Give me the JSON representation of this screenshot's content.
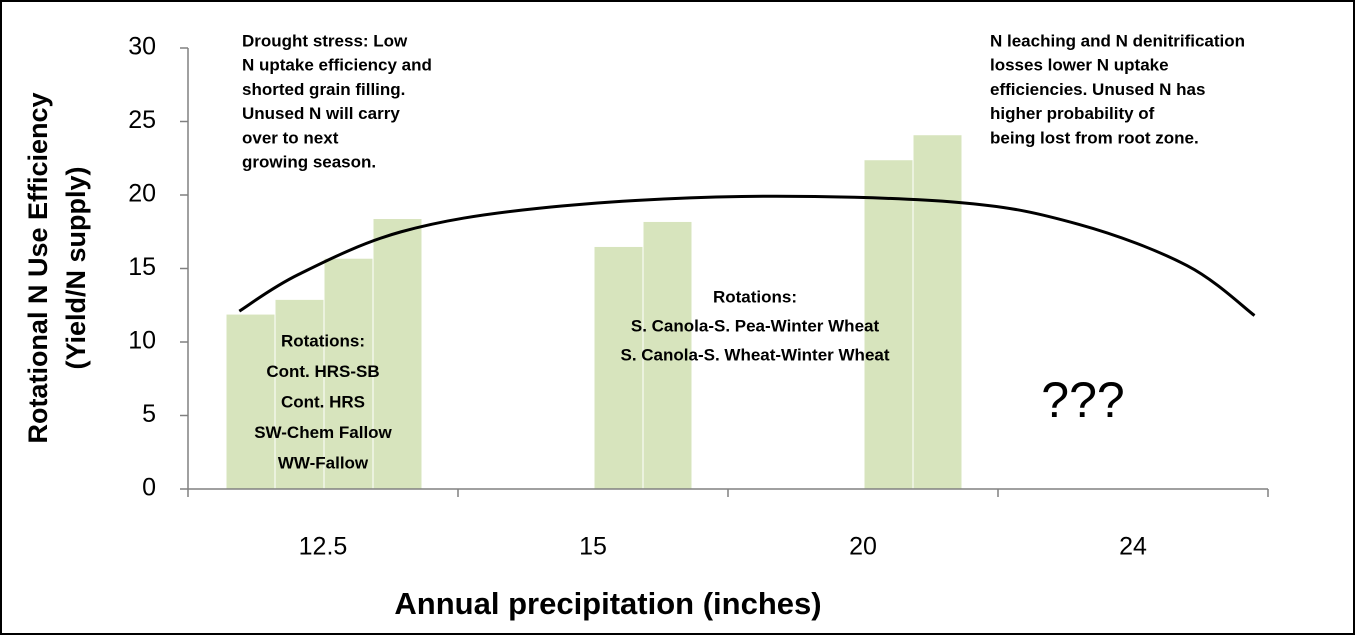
{
  "chart_data": {
    "type": "bar",
    "y_label": [
      "Rotational N Use Efficiency",
      "(Yield/N supply)"
    ],
    "x_label": "Annual precipitation (inches)",
    "categories": [
      "12.5",
      "15",
      "20",
      "24"
    ],
    "series": [
      {
        "color": "#d7e4bd",
        "values": [
          11.9,
          null,
          null,
          null
        ]
      },
      {
        "color": "#d7e4bd",
        "values": [
          12.9,
          null,
          null,
          null
        ]
      },
      {
        "color": "#d7e4bd",
        "values": [
          15.7,
          16.5,
          22.4,
          null
        ]
      },
      {
        "color": "#d7e4bd",
        "values": [
          18.4,
          18.2,
          24.1,
          null
        ]
      }
    ],
    "ylim": [
      0,
      30
    ],
    "yticks": [
      0,
      5,
      10,
      15,
      20,
      25,
      30
    ],
    "trend": {
      "color": "#000000",
      "x": [
        0.19,
        0.41,
        0.79,
        1.3,
        2.05,
        2.85,
        3.3,
        3.7,
        3.95
      ],
      "values": [
        12.1,
        14.6,
        17.5,
        19.1,
        19.9,
        19.5,
        18.0,
        15.2,
        11.8
      ]
    },
    "annotations": [
      {
        "lines": [
          "Drought stress: Low",
          "N uptake efficiency and",
          "shorted grain filling.",
          "Unused N will carry",
          "over to next",
          "growing season."
        ]
      },
      {
        "lines": [
          "N leaching and N denitrification",
          "losses lower N uptake",
          "efficiencies. Unused N has",
          "higher probability of",
          "being lost from root zone."
        ]
      },
      {
        "lines": [
          "Rotations:",
          "Cont. HRS-SB",
          "Cont. HRS",
          "SW-Chem Fallow",
          "WW-Fallow"
        ]
      },
      {
        "lines": [
          "Rotations:",
          "S. Canola-S. Pea-Winter Wheat",
          "S. Canola-S. Wheat-Winter Wheat"
        ]
      },
      {
        "lines": [
          "???"
        ]
      }
    ]
  }
}
